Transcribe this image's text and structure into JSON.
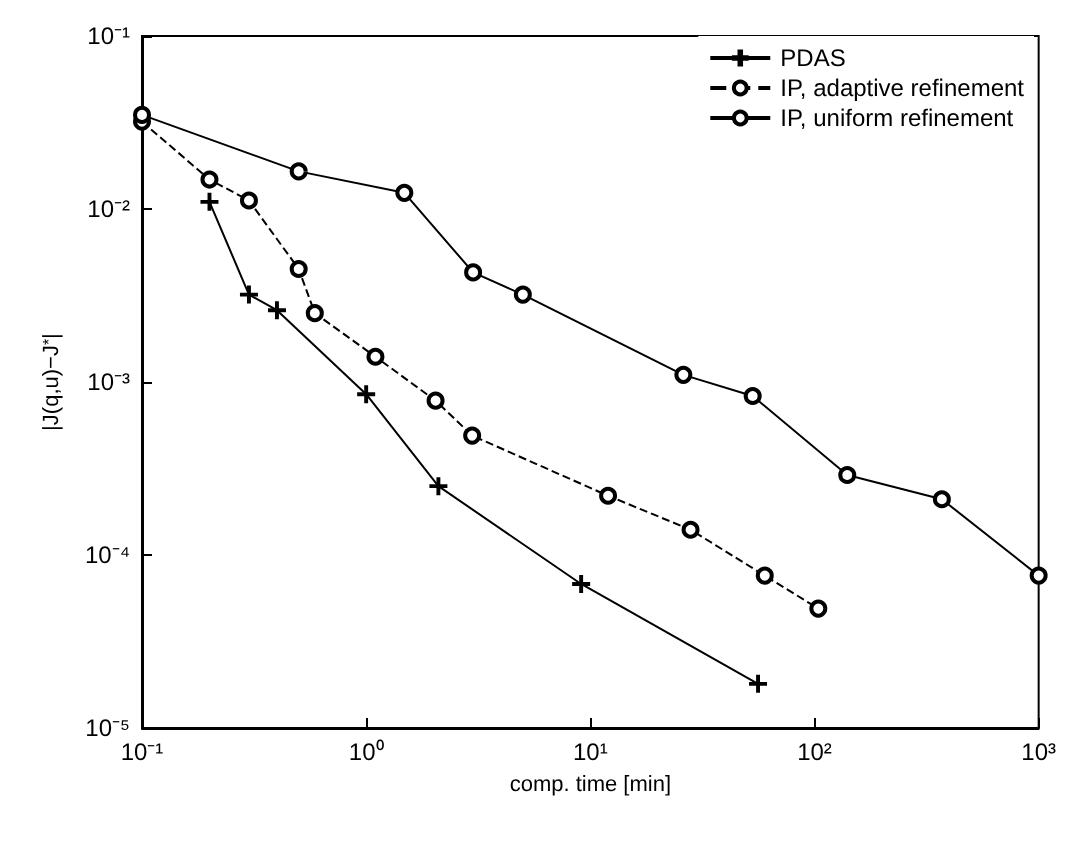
{
  "chart_data": {
    "type": "line",
    "xlabel": "comp. time [min]",
    "ylabel": "|J(q,u)−J$^{*}$|",
    "log": "xy",
    "grid": false,
    "legend": "top right",
    "xlim": [
      0.1,
      1000
    ],
    "xticks": [
      {
        "value": 0.1,
        "label": "10⁻¹"
      },
      {
        "value": 1,
        "label": "10⁰"
      },
      {
        "value": 10,
        "label": "10¹"
      },
      {
        "value": 100,
        "label": "10²"
      },
      {
        "value": 1000,
        "label": "10³"
      }
    ],
    "ylim": [
      1e-05,
      0.1
    ],
    "yticks": [
      {
        "value": 1e-05,
        "label": "10⁻⁵"
      },
      {
        "value": 0.0001,
        "label": "10⁻⁴"
      },
      {
        "value": 0.001,
        "label": "10⁻³"
      },
      {
        "value": 0.01,
        "label": "10⁻²"
      },
      {
        "value": 0.1,
        "label": "10⁻¹"
      }
    ],
    "series": [
      {
        "name": "PDAS",
        "color": "#000000",
        "marker": "cross",
        "line_style": "solid",
        "x": [
          0.2,
          0.3,
          0.4,
          1,
          2.1,
          9.1,
          56
        ],
        "values": [
          0.011,
          0.0032,
          0.0026,
          0.00085,
          0.00025,
          6.8e-05,
          1.8e-05
        ]
      },
      {
        "name": "IP, adaptive refinement",
        "color": "#000000",
        "marker": "circle",
        "line_style": "dashed",
        "x": [
          0.1,
          0.2,
          0.3,
          0.5,
          0.59,
          1.1,
          2.04,
          2.97,
          12,
          28,
          60,
          104
        ],
        "values": [
          0.032,
          0.0148,
          0.0112,
          0.0045,
          0.0025,
          0.0014,
          0.00078,
          0.00049,
          0.00022,
          0.00014,
          7.6e-05,
          4.9e-05
        ]
      },
      {
        "name": "IP, uniform refinement",
        "color": "#000000",
        "marker": "circle",
        "line_style": "solid",
        "x": [
          0.1,
          0.5,
          1.48,
          3,
          5,
          26,
          53,
          140,
          370,
          1000
        ],
        "values": [
          0.035,
          0.0165,
          0.0124,
          0.0043,
          0.0032,
          0.0011,
          0.00083,
          0.00029,
          0.00021,
          7.6e-05
        ]
      }
    ]
  }
}
